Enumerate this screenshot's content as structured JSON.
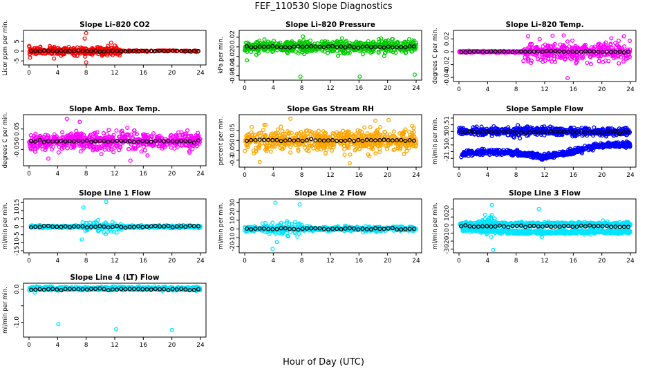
{
  "figure": {
    "title": "FEF_110530  Slope Diagnostics",
    "xlabel": "Hour of Day (UTC)"
  },
  "chart_data": [
    {
      "type": "scatter",
      "title": "Slope Li–820 CO2",
      "xlabel": "",
      "ylabel": "Licor ppm per min.",
      "xlim": [
        0,
        24
      ],
      "ylim": [
        -6,
        9.5
      ],
      "xticks": [
        0,
        4,
        8,
        12,
        16,
        20,
        24
      ],
      "yticks": [
        -5,
        0,
        5
      ],
      "grid": false,
      "series": [
        {
          "role": "individual",
          "color": "#ff0000",
          "x_range": [
            0,
            13
          ],
          "center": 0,
          "spread": 1.6,
          "outliers": [
            [
              8,
              9.2
            ],
            [
              8,
              -5.8
            ],
            [
              11.5,
              4.3
            ],
            [
              3.5,
              -3.8
            ],
            [
              7.8,
              6.4
            ]
          ],
          "tail_x_range": [
            13,
            24
          ],
          "tail_spread": 0.3
        },
        {
          "role": "mean",
          "color": "#000000",
          "x_range": [
            0,
            24
          ],
          "values_approx": 0
        }
      ]
    },
    {
      "type": "scatter",
      "title": "Slope Li–820 Pressure",
      "xlabel": "",
      "ylabel": "kPa per min.",
      "xlim": [
        0,
        24
      ],
      "ylim": [
        -0.065,
        0.03
      ],
      "xticks": [
        0,
        4,
        8,
        12,
        16,
        20,
        24
      ],
      "yticks": [
        -0.06,
        -0.04,
        -0.02,
        0,
        0.02
      ],
      "grid": false,
      "series": [
        {
          "role": "individual",
          "color": "#00cc00",
          "x_range": [
            0,
            24
          ],
          "center": 0.0,
          "spread": 0.011,
          "outliers": [
            [
              7.8,
              -0.062
            ],
            [
              16.1,
              -0.062
            ],
            [
              23.8,
              -0.058
            ],
            [
              0.3,
              -0.028
            ]
          ]
        },
        {
          "role": "mean",
          "color": "#000000",
          "x_range": [
            0,
            24
          ],
          "values_approx": 0.0
        }
      ]
    },
    {
      "type": "scatter",
      "title": "Slope Li–820 Temp.",
      "xlabel": "",
      "ylabel": "degrees C per min.",
      "xlim": [
        0,
        24
      ],
      "ylim": [
        -0.043,
        0.03
      ],
      "xticks": [
        0,
        4,
        8,
        12,
        16,
        20,
        24
      ],
      "yticks": [
        -0.04,
        -0.02,
        0,
        0.02
      ],
      "grid": false,
      "series": [
        {
          "role": "individual",
          "color": "#ff00ff",
          "x_range": [
            0,
            24
          ],
          "center": 0.0,
          "spread": 0.012,
          "quiet_x_range": [
            0,
            9
          ],
          "quiet_spread": 0.001,
          "outliers": [
            [
              15.2,
              -0.041
            ],
            [
              13.1,
              0.025
            ],
            [
              23.1,
              0.024
            ]
          ]
        },
        {
          "role": "mean",
          "color": "#000000",
          "x_range": [
            0,
            24
          ],
          "values_approx": 0.0
        }
      ]
    },
    {
      "type": "scatter",
      "title": "Slope Amb. Box Temp.",
      "xlabel": "",
      "ylabel": "degrees C per min.",
      "xlim": [
        0,
        24
      ],
      "ylim": [
        -0.12,
        0.11
      ],
      "xticks": [
        0,
        4,
        8,
        12,
        16,
        20,
        24
      ],
      "yticks": [
        -0.05,
        0,
        0.05
      ],
      "grid": false,
      "series": [
        {
          "role": "individual",
          "color": "#ff00ff",
          "x_range": [
            0,
            24
          ],
          "center": -0.01,
          "spread": 0.035,
          "outliers": [
            [
              5.3,
              0.1
            ],
            [
              7.1,
              0.085
            ],
            [
              14.2,
              -0.105
            ],
            [
              2.7,
              -0.095
            ]
          ]
        },
        {
          "role": "mean",
          "color": "#000000",
          "x_range": [
            0,
            24
          ],
          "values_approx": -0.01
        }
      ]
    },
    {
      "type": "scatter",
      "title": "Slope Gas Stream RH",
      "xlabel": "",
      "ylabel": "percent per min.",
      "xlim": [
        0,
        24
      ],
      "ylim": [
        -0.125,
        0.12
      ],
      "xticks": [
        0,
        4,
        8,
        12,
        16,
        20,
        24
      ],
      "yticks": [
        -0.1,
        -0.05,
        0,
        0.05
      ],
      "grid": false,
      "series": [
        {
          "role": "individual",
          "color": "#ffa500",
          "x_range": [
            0,
            24
          ],
          "center": 0.0,
          "spread": 0.045,
          "outliers": [
            [
              6.4,
              0.11
            ],
            [
              14.7,
              -0.115
            ],
            [
              18.3,
              0.1
            ],
            [
              2.1,
              -0.11
            ]
          ]
        },
        {
          "role": "mean",
          "color": "#000000",
          "x_range": [
            0,
            24
          ],
          "values_approx": 0.0
        }
      ]
    },
    {
      "type": "scatter",
      "title": "Slope Sample Flow",
      "xlabel": "",
      "ylabel": "ml/min per min.",
      "xlim": [
        0,
        24
      ],
      "ylim": [
        -2.5,
        1.1
      ],
      "xticks": [
        0,
        4,
        8,
        12,
        16,
        20,
        24
      ],
      "yticks": [
        -2,
        -1.5,
        -1,
        -0.5,
        0,
        0.5,
        1
      ],
      "grid": false,
      "series": [
        {
          "role": "individual-upper",
          "color": "#0000ff",
          "x_range": [
            0,
            24
          ],
          "center": 0.0,
          "spread": 0.25
        },
        {
          "role": "individual-lower",
          "color": "#0000ff",
          "x_range": [
            0.3,
            24
          ],
          "trend": [
            [
              0.5,
              -1.7
            ],
            [
              4,
              -1.5
            ],
            [
              8,
              -1.6
            ],
            [
              12,
              -1.9
            ],
            [
              16,
              -1.5
            ],
            [
              20,
              -1.0
            ],
            [
              24,
              -0.95
            ]
          ],
          "spread": 0.15
        },
        {
          "role": "mean",
          "color": "#000000",
          "x_range": [
            0,
            24
          ],
          "values_approx": -0.05
        }
      ]
    },
    {
      "type": "scatter",
      "title": "Slope Line 1 Flow",
      "xlabel": "",
      "ylabel": "ml/min per min.",
      "xlim": [
        0,
        24
      ],
      "ylim": [
        -15,
        16
      ],
      "xticks": [
        0,
        4,
        8,
        12,
        16,
        20,
        24
      ],
      "yticks": [
        -15,
        -10,
        -5,
        0,
        5,
        10,
        15
      ],
      "grid": false,
      "series": [
        {
          "role": "individual",
          "color": "#00e5ff",
          "x_range": [
            0,
            24
          ],
          "center": 0.0,
          "spread": 0.6,
          "active_x_range": [
            7.5,
            13
          ],
          "active_spread": 3.5,
          "outliers": [
            [
              7.6,
              12
            ],
            [
              10.8,
              15.5
            ],
            [
              7.4,
              -8
            ]
          ]
        },
        {
          "role": "mean",
          "color": "#000000",
          "x_range": [
            0,
            24
          ],
          "values_approx": 0.0
        }
      ]
    },
    {
      "type": "scatter",
      "title": "Slope Line 2 Flow",
      "xlabel": "",
      "ylabel": "ml/min per min.",
      "xlim": [
        0,
        24
      ],
      "ylim": [
        -25,
        32
      ],
      "xticks": [
        0,
        4,
        8,
        12,
        16,
        20,
        24
      ],
      "yticks": [
        -20,
        -10,
        0,
        10,
        20,
        30
      ],
      "grid": false,
      "series": [
        {
          "role": "individual",
          "color": "#00e5ff",
          "x_range": [
            0,
            24
          ],
          "center": 0.0,
          "spread": 2.0,
          "active_x_range": [
            2.5,
            8
          ],
          "active_spread": 8,
          "outliers": [
            [
              4.3,
              30
            ],
            [
              7.7,
              28
            ],
            [
              3.9,
              -23
            ],
            [
              4.5,
              -15
            ]
          ]
        },
        {
          "role": "mean",
          "color": "#000000",
          "x_range": [
            0,
            24
          ],
          "values_approx": 0.0
        }
      ]
    },
    {
      "type": "scatter",
      "title": "Slope Line 3 Flow",
      "xlabel": "",
      "ylabel": "ml/min per min.",
      "xlim": [
        0,
        24
      ],
      "ylim": [
        -32,
        30
      ],
      "xticks": [
        0,
        4,
        8,
        12,
        16,
        20,
        24
      ],
      "yticks": [
        -30,
        -20,
        -10,
        0,
        10,
        20
      ],
      "grid": false,
      "series": [
        {
          "role": "individual-upper",
          "color": "#00e5ff",
          "x_range": [
            0,
            24
          ],
          "center": 1.0,
          "spread": 2.0
        },
        {
          "role": "individual-lower",
          "color": "#00e5ff",
          "x_range": [
            0.5,
            24
          ],
          "trend": [
            [
              0.5,
              -5
            ],
            [
              6,
              -8
            ],
            [
              12,
              -9
            ],
            [
              18,
              -8
            ],
            [
              24,
              -8
            ]
          ],
          "spread": 2.0
        },
        {
          "role": "active",
          "color": "#00e5ff",
          "x_range": [
            3,
            5
          ],
          "spread": 12,
          "outliers": [
            [
              4.6,
              25
            ],
            [
              11.2,
              20
            ],
            [
              4.8,
              -31
            ],
            [
              11.6,
              -15
            ]
          ]
        },
        {
          "role": "mean",
          "color": "#000000",
          "x_range": [
            0,
            24
          ],
          "values_approx": -1.5
        }
      ]
    },
    {
      "type": "scatter",
      "title": "Slope Line 4 (LT) Flow",
      "xlabel": "",
      "ylabel": "ml/min per min.",
      "xlim": [
        0,
        24
      ],
      "ylim": [
        -1.38,
        0.12
      ],
      "xticks": [
        0,
        4,
        8,
        12,
        16,
        20,
        24
      ],
      "yticks": [
        -1.0,
        -0.5,
        0.0
      ],
      "ytick_labels": [
        "-1.0",
        "",
        "0.0"
      ],
      "grid": false,
      "series": [
        {
          "role": "individual",
          "color": "#00e5ff",
          "x_range": [
            0,
            24
          ],
          "center": 0.02,
          "spread": 0.04,
          "outliers": [
            [
              4.1,
              -1.05
            ],
            [
              12.2,
              -1.2
            ],
            [
              20.0,
              -1.23
            ],
            [
              0.8,
              -0.1
            ]
          ]
        },
        {
          "role": "mean",
          "color": "#000000",
          "x_range": [
            0,
            24
          ],
          "values_approx": 0.0
        }
      ]
    }
  ]
}
